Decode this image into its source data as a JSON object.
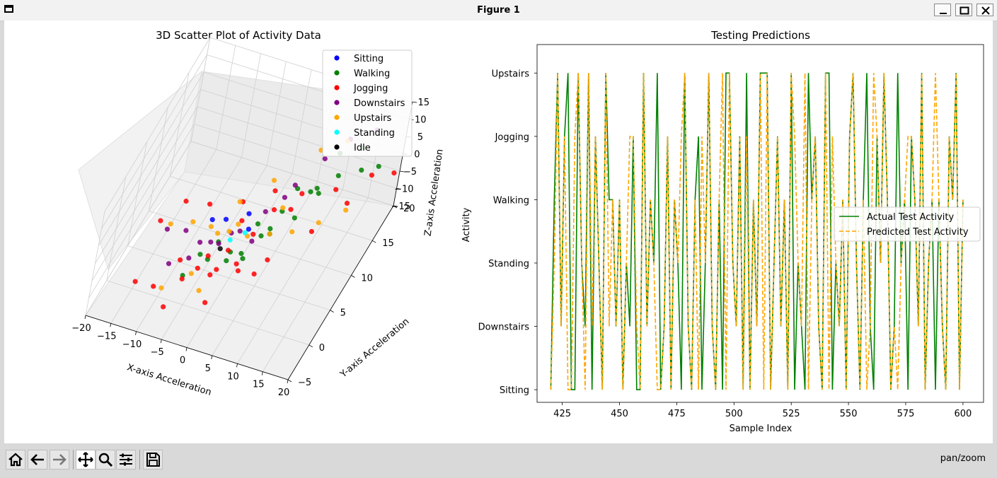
{
  "window": {
    "title": "Figure 1"
  },
  "toolbar": {
    "buttons": [
      "home",
      "back",
      "forward",
      "pan",
      "zoom",
      "configure-subplots",
      "save"
    ],
    "status": "pan/zoom"
  },
  "chart_data": [
    {
      "type": "scatter",
      "projection": "3d",
      "title": "3D Scatter Plot of Activity Data",
      "xlabel": "X-axis Acceleration",
      "ylabel": "Y-axis Acceleration",
      "zlabel": "Z-axis Acceleration",
      "xlim": [
        -20,
        20
      ],
      "ylim": [
        -5,
        20
      ],
      "zlim": [
        -15,
        15
      ],
      "xticks": [
        "−20",
        "−15",
        "−10",
        "−5",
        "0",
        "5",
        "10",
        "15",
        "20"
      ],
      "yticks": [
        "−5",
        "0",
        "5",
        "10",
        "15",
        "20"
      ],
      "zticks": [
        "−15",
        "−10",
        "−5",
        "0",
        "5",
        "10",
        "15"
      ],
      "grid": true,
      "legend_position": "top-right",
      "series": [
        {
          "name": "Sitting",
          "color": "#0000ff",
          "points": [
            [
              -2,
              4,
              3
            ],
            [
              1,
              6,
              2
            ],
            [
              -4,
              3,
              4
            ],
            [
              2,
              5,
              0
            ]
          ]
        },
        {
          "name": "Walking",
          "color": "#008000",
          "points": [
            [
              3,
              6,
              0
            ],
            [
              6,
              8,
              1
            ],
            [
              9,
              11,
              2
            ],
            [
              12,
              14,
              2
            ],
            [
              15,
              16,
              1
            ],
            [
              17,
              18,
              -1
            ],
            [
              10,
              12,
              0
            ],
            [
              8,
              9,
              -2
            ],
            [
              5,
              7,
              -4
            ],
            [
              2,
              4,
              -5
            ],
            [
              0,
              3,
              -6
            ],
            [
              -3,
              2,
              -5
            ],
            [
              -6,
              0,
              -7
            ],
            [
              4,
              6,
              -3
            ],
            [
              7,
              10,
              4
            ],
            [
              11,
              15,
              6
            ],
            [
              14,
              17,
              5
            ],
            [
              6,
              5,
              2
            ],
            [
              1,
              2,
              -1
            ],
            [
              -1,
              1,
              3
            ],
            [
              9,
              13,
              -1
            ],
            [
              3,
              3,
              -4
            ],
            [
              -4,
              1,
              -2
            ]
          ]
        },
        {
          "name": "Jogging",
          "color": "#ff0000",
          "points": [
            [
              -6,
              0,
              -8
            ],
            [
              -2,
              2,
              -9
            ],
            [
              2,
              4,
              -10
            ],
            [
              6,
              6,
              -9
            ],
            [
              -10,
              -2,
              -8
            ],
            [
              -13,
              -3,
              -6
            ],
            [
              -12,
              0,
              6
            ],
            [
              -9,
              2,
              9
            ],
            [
              -5,
              3,
              8
            ],
            [
              0,
              5,
              7
            ],
            [
              4,
              8,
              6
            ],
            [
              8,
              10,
              3
            ],
            [
              12,
              14,
              -2
            ],
            [
              16,
              18,
              -4
            ],
            [
              19,
              20,
              -6
            ],
            [
              14,
              15,
              -7
            ],
            [
              10,
              12,
              -11
            ],
            [
              4,
              6,
              -14
            ],
            [
              -2,
              2,
              -17
            ],
            [
              -8,
              -1,
              -15
            ],
            [
              -4,
              1,
              -6
            ],
            [
              0,
              3,
              -3
            ],
            [
              3,
              5,
              -1
            ],
            [
              -7,
              0,
              -3
            ],
            [
              -3,
              2,
              -4
            ],
            [
              1,
              4,
              4
            ],
            [
              5,
              7,
              3
            ],
            [
              -1,
              2,
              -7
            ],
            [
              2,
              3,
              -6
            ],
            [
              7,
              9,
              0
            ]
          ]
        },
        {
          "name": "Downstairs",
          "color": "#800080",
          "points": [
            [
              -11,
              1,
              2
            ],
            [
              -8,
              2,
              1
            ],
            [
              -5,
              2,
              -1
            ],
            [
              -2,
              3,
              -2
            ],
            [
              1,
              4,
              1
            ],
            [
              4,
              6,
              4
            ],
            [
              7,
              9,
              7
            ],
            [
              10,
              12,
              10
            ],
            [
              13,
              14,
              13
            ],
            [
              16,
              17,
              11
            ],
            [
              -6,
              1,
              -4
            ],
            [
              -3,
              2,
              0
            ],
            [
              0,
              3,
              2
            ],
            [
              3,
              5,
              -3
            ],
            [
              -9,
              0,
              -5
            ],
            [
              6,
              8,
              5
            ]
          ]
        },
        {
          "name": "Upstairs",
          "color": "#ffa500",
          "points": [
            [
              -10,
              0,
              6
            ],
            [
              -7,
              2,
              4
            ],
            [
              -4,
              3,
              2
            ],
            [
              -1,
              4,
              0
            ],
            [
              2,
              5,
              -2
            ],
            [
              5,
              7,
              -4
            ],
            [
              8,
              9,
              -6
            ],
            [
              11,
              12,
              -8
            ],
            [
              14,
              15,
              -9
            ],
            [
              0,
              4,
              9
            ],
            [
              4,
              7,
              11
            ],
            [
              9,
              12,
              12
            ],
            [
              12,
              15,
              10
            ],
            [
              -5,
              1,
              -8
            ],
            [
              -9,
              -1,
              -10
            ],
            [
              -3,
              1,
              -12
            ],
            [
              1,
              3,
              5
            ],
            [
              6,
              8,
              2
            ],
            [
              -2,
              2,
              3
            ]
          ]
        },
        {
          "name": "Standing",
          "color": "#00ffff",
          "points": [
            [
              0,
              3,
              0
            ],
            [
              2,
              4,
              1
            ]
          ]
        },
        {
          "name": "Idle",
          "color": "#000000",
          "points": [
            [
              -1,
              2,
              -1
            ]
          ]
        }
      ]
    },
    {
      "type": "line",
      "title": "Testing Predictions",
      "xlabel": "Sample Index",
      "ylabel": "Activity",
      "xlim": [
        414,
        609
      ],
      "ylim": [
        -0.2,
        5.45
      ],
      "xticks": [
        425,
        450,
        475,
        500,
        525,
        550,
        575,
        600
      ],
      "yticks": [
        "Sitting",
        "Downstairs",
        "Standing",
        "Walking",
        "Jogging",
        "Upstairs"
      ],
      "grid": false,
      "legend_position": "center-right",
      "x_start": 420,
      "x_step": 1.5,
      "series": [
        {
          "name": "Actual Test Activity",
          "color": "#008000",
          "style": "solid",
          "values": [
            0,
            3,
            5,
            1,
            4,
            5,
            0,
            0,
            5,
            2,
            1,
            5,
            0,
            4,
            2,
            0,
            5,
            3,
            3,
            1,
            3,
            0,
            2,
            1,
            4,
            0,
            0,
            5,
            1,
            3,
            2,
            5,
            0,
            1,
            4,
            0,
            3,
            2,
            0,
            5,
            1,
            0,
            3,
            4,
            0,
            2,
            5,
            1,
            0,
            3,
            0,
            5,
            5,
            2,
            1,
            4,
            0,
            5,
            0,
            3,
            1,
            5,
            5,
            5,
            0,
            2,
            4,
            1,
            3,
            0,
            5,
            0,
            2,
            1,
            0,
            5,
            3,
            4,
            1,
            0,
            5,
            5,
            0,
            2,
            1,
            3,
            0,
            4,
            5,
            2,
            0,
            3,
            5,
            1,
            0,
            4,
            2,
            5,
            3,
            0,
            1,
            5,
            2,
            3,
            0,
            4,
            3,
            1,
            5,
            0,
            2,
            3,
            0,
            3,
            1,
            0,
            4,
            3,
            5,
            0,
            3
          ]
        },
        {
          "name": "Predicted Test Activity",
          "color": "#ffa500",
          "style": "dashed",
          "values": [
            0,
            2,
            5,
            1,
            4,
            0,
            0,
            4,
            5,
            2,
            0,
            5,
            1,
            4,
            2,
            0,
            5,
            1,
            3,
            1,
            3,
            0,
            2,
            4,
            4,
            1,
            0,
            5,
            1,
            3,
            2,
            0,
            0,
            1,
            4,
            0,
            3,
            2,
            4,
            5,
            1,
            0,
            3,
            0,
            4,
            2,
            5,
            1,
            0,
            3,
            5,
            0,
            5,
            2,
            1,
            4,
            0,
            4,
            0,
            3,
            1,
            5,
            0,
            5,
            0,
            2,
            4,
            1,
            3,
            0,
            5,
            4,
            2,
            1,
            5,
            0,
            3,
            4,
            1,
            0,
            5,
            0,
            4,
            2,
            1,
            3,
            0,
            4,
            5,
            2,
            0,
            3,
            0,
            1,
            5,
            4,
            2,
            5,
            3,
            0,
            1,
            0,
            2,
            3,
            4,
            4,
            3,
            1,
            5,
            0,
            2,
            3,
            5,
            3,
            1,
            0,
            4,
            3,
            5,
            0,
            3
          ]
        }
      ]
    }
  ]
}
